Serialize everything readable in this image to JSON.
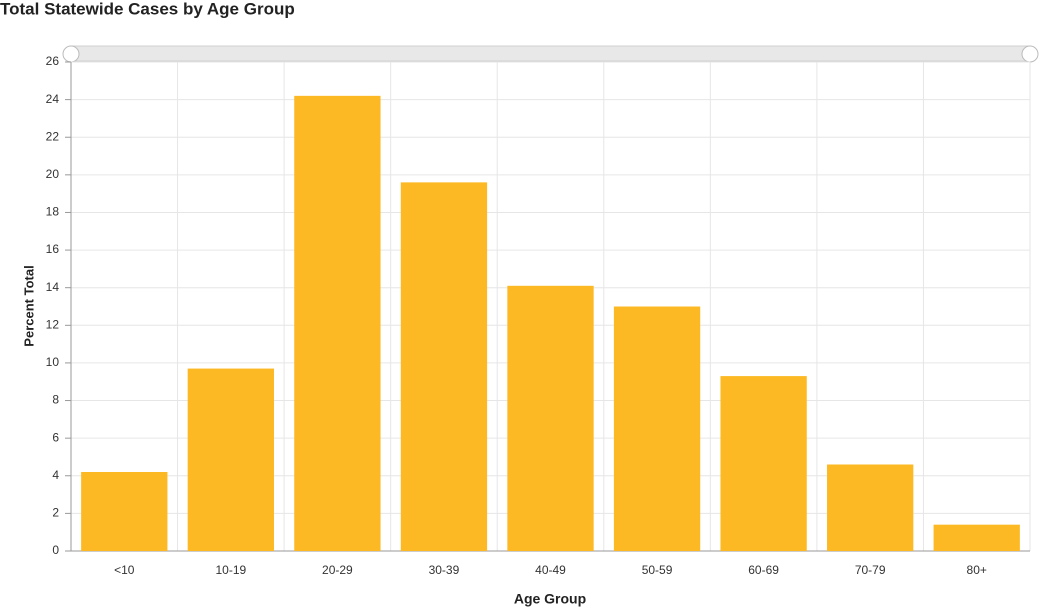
{
  "chart_data": {
    "type": "bar",
    "title": "Total Statewide Cases by Age Group",
    "x_label": "Age Group",
    "y_label": "Percent Total",
    "categories": [
      "<10",
      "10-19",
      "20-29",
      "30-39",
      "40-49",
      "50-59",
      "60-69",
      "70-79",
      "80+"
    ],
    "values": [
      4.2,
      9.7,
      24.2,
      19.6,
      14.1,
      13.0,
      9.3,
      4.6,
      1.4
    ],
    "color": "#fdb924",
    "ylim": [
      0,
      26
    ],
    "yticks": [
      0,
      2,
      4,
      6,
      8,
      10,
      12,
      14,
      16,
      18,
      20,
      22,
      24,
      26
    ],
    "grid": true
  }
}
